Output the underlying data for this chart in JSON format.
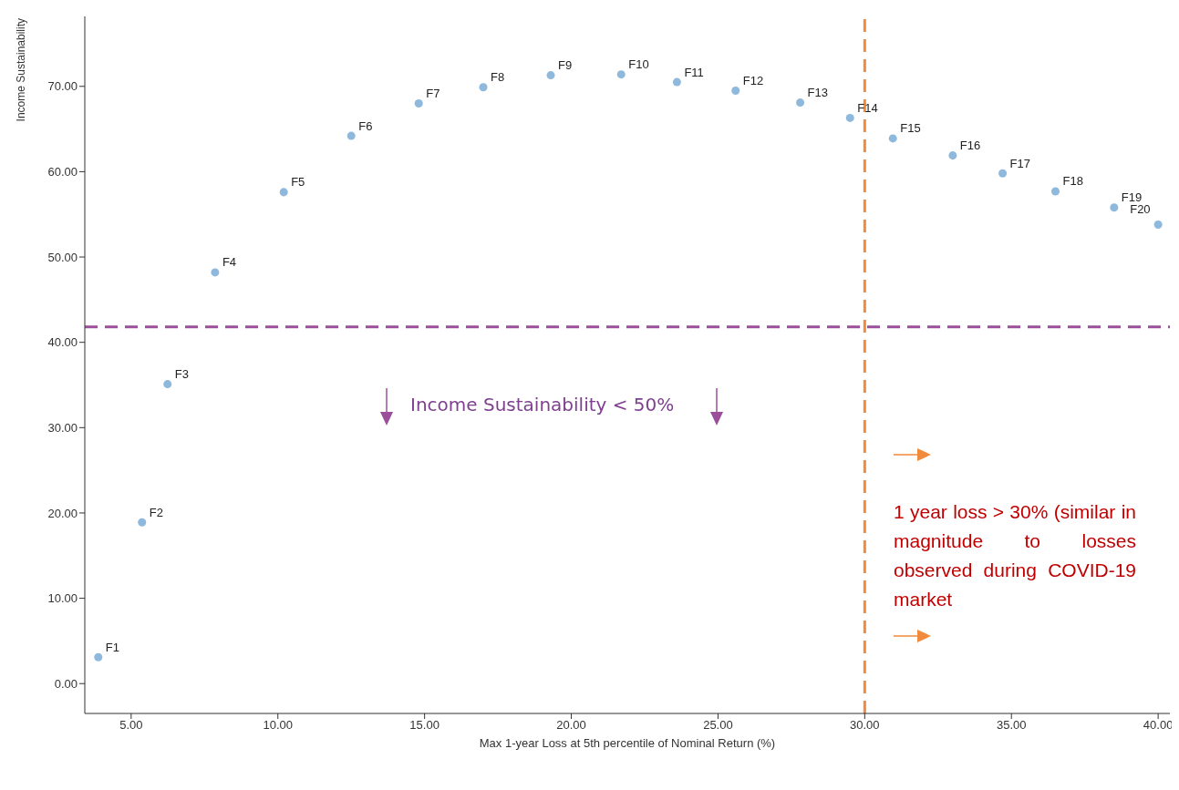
{
  "chart_data": {
    "type": "scatter",
    "xlabel": "Max 1-year Loss at 5th percentile of Nominal Return (%)",
    "ylabel": "Income Sustainability",
    "x": [
      3.88,
      5.37,
      6.24,
      7.86,
      10.2,
      12.5,
      14.8,
      17.0,
      19.3,
      21.7,
      23.6,
      25.6,
      27.8,
      29.5,
      30.96,
      33.0,
      34.7,
      36.5,
      38.5,
      40.0
    ],
    "series": [
      {
        "color": "#8fb9dc",
        "values": [
          3.1,
          18.9,
          35.1,
          48.2,
          57.6,
          64.2,
          68.0,
          69.9,
          71.3,
          71.4,
          70.5,
          69.5,
          68.1,
          66.3,
          63.9,
          61.9,
          59.8,
          57.7,
          55.8,
          53.8
        ],
        "value_labels": [
          "F1",
          "F2",
          "F3",
          "F4",
          "F5",
          "F6",
          "F7",
          "F8",
          "F9",
          "F10",
          "F11",
          "F12",
          "F13",
          "F14",
          "F15",
          "F16",
          "F17",
          "F18",
          "F19",
          "F20"
        ]
      }
    ],
    "xlim": [
      3.42,
      40.4
    ],
    "xticks": [
      {
        "value": 5,
        "label": "5.00"
      },
      {
        "value": 10,
        "label": "10.00"
      },
      {
        "value": 15,
        "label": "15.00"
      },
      {
        "value": 20,
        "label": "20.00"
      },
      {
        "value": 25,
        "label": "25.00"
      },
      {
        "value": 30,
        "label": "30.00"
      },
      {
        "value": 35,
        "label": "35.00"
      },
      {
        "value": 40,
        "label": "40.00"
      }
    ],
    "ylim": [
      -3.5,
      78.2
    ],
    "yticks": [
      {
        "value": 0,
        "label": "0.00"
      },
      {
        "value": 10,
        "label": "10.00"
      },
      {
        "value": 20,
        "label": "20.00"
      },
      {
        "value": 30,
        "label": "30.00"
      },
      {
        "value": 40,
        "label": "40.00"
      },
      {
        "value": 50,
        "label": "50.00"
      },
      {
        "value": 60,
        "label": "60.00"
      },
      {
        "value": 70,
        "label": "70.00"
      }
    ],
    "ref_lines": [
      {
        "axis": "y",
        "value": 41.8,
        "color": "#9b4f9b",
        "line_style": "dashed"
      },
      {
        "axis": "x",
        "value": 30,
        "color": "#f08a3c",
        "line_style": "dashed"
      }
    ],
    "annotations": [
      "Income Sustainability < 50%",
      "1 year loss > 30% (similar in magnitude to losses observed during COVID-19 market"
    ],
    "marker": "circle"
  }
}
